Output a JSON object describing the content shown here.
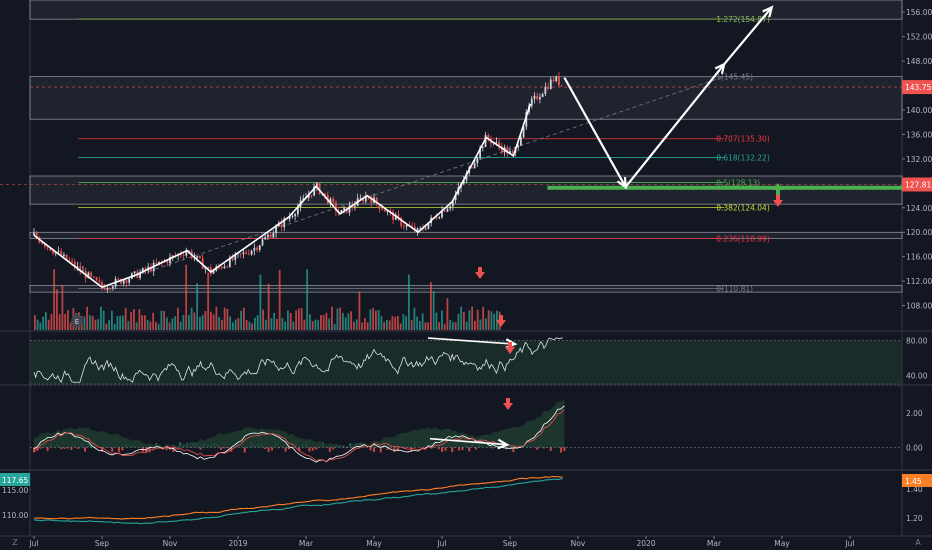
{
  "chart_data": [
    {
      "type": "line",
      "ylabel": "",
      "ylim": [
        104,
        158
      ],
      "y_ticks": [
        108,
        112,
        116,
        120,
        124,
        128,
        132,
        136,
        140,
        144,
        148,
        152,
        156
      ],
      "x_ticks": [
        "Jul",
        "Sep",
        "Nov",
        "2019",
        "Mar",
        "May",
        "Jul",
        "Sep",
        "Nov",
        "2020",
        "Mar",
        "May",
        "Jul"
      ],
      "last_price": 143.75,
      "last_price_label": "143.75",
      "marker_price": 127.81,
      "marker_price_label": "127.81",
      "fib_levels": [
        {
          "label": "1.272(154.87)",
          "value": 154.87,
          "color": "#8bc34a"
        },
        {
          "label": "1(145.45)",
          "value": 145.45,
          "color": "#787b86"
        },
        {
          "label": "0.707(135.30)",
          "value": 135.3,
          "color": "#f23645"
        },
        {
          "label": "0.618(132.22)",
          "value": 132.22,
          "color": "#26a69a"
        },
        {
          "label": "0.5(128.13)",
          "value": 128.13,
          "color": "#4caf50"
        },
        {
          "label": "0.382(124.04)",
          "value": 124.04,
          "color": "#cddc39"
        },
        {
          "label": "0.236(118.99)",
          "value": 118.99,
          "color": "#f23645"
        },
        {
          "label": "0(110.81)",
          "value": 110.81,
          "color": "#787b86"
        }
      ],
      "price_path": [
        {
          "month": 0,
          "price": 119.5
        },
        {
          "month": 0.7,
          "price": 116.5
        },
        {
          "month": 1.3,
          "price": 114
        },
        {
          "month": 2,
          "price": 111
        },
        {
          "month": 3,
          "price": 113
        },
        {
          "month": 4.5,
          "price": 117
        },
        {
          "month": 5.2,
          "price": 113.5
        },
        {
          "month": 6.5,
          "price": 117.5
        },
        {
          "month": 7.5,
          "price": 122.5
        },
        {
          "month": 8.3,
          "price": 127.5
        },
        {
          "month": 9,
          "price": 123
        },
        {
          "month": 9.8,
          "price": 126
        },
        {
          "month": 10.8,
          "price": 121.5
        },
        {
          "month": 11.3,
          "price": 120
        },
        {
          "month": 12.3,
          "price": 125
        },
        {
          "month": 13.3,
          "price": 135.5
        },
        {
          "month": 14.1,
          "price": 132.5
        },
        {
          "month": 14.6,
          "price": 141
        },
        {
          "month": 15.3,
          "price": 145.2
        },
        {
          "month": 15.6,
          "price": 143.75
        }
      ],
      "projection": [
        {
          "month": 15.6,
          "price": 145.3
        },
        {
          "month": 17.4,
          "price": 127.4
        },
        {
          "month": 20.3,
          "price": 147.5
        },
        {
          "month": 21.7,
          "price": 156.8
        }
      ],
      "volume_e_label": "E"
    },
    {
      "type": "line",
      "ylim": [
        30,
        90
      ],
      "y_ticks": [
        40,
        80
      ],
      "y_tick_labels": [
        "40.00",
        "80.00"
      ],
      "band": [
        30,
        80
      ]
    },
    {
      "type": "area",
      "ylim": [
        -1.2,
        3.5
      ],
      "y_ticks": [
        0,
        2
      ],
      "y_tick_labels": [
        "0.00",
        "2.00"
      ]
    },
    {
      "type": "line",
      "series": [
        {
          "color": "#26a69a"
        },
        {
          "color": "#ff7f27"
        }
      ],
      "left_axis_labels": [
        "115.00",
        "110.00"
      ],
      "right_axis_labels": [
        "1.40",
        "1.20"
      ],
      "left_last_label": "117.65",
      "right_last_label": "1.45"
    }
  ],
  "colors": {
    "up": "#26a69a",
    "down": "#ef5350",
    "background": "#131722",
    "grid": "#2a2e39",
    "text": "#b2b5be",
    "accent": "#4caf50"
  },
  "corner_label": "Z",
  "auto_label": "A"
}
